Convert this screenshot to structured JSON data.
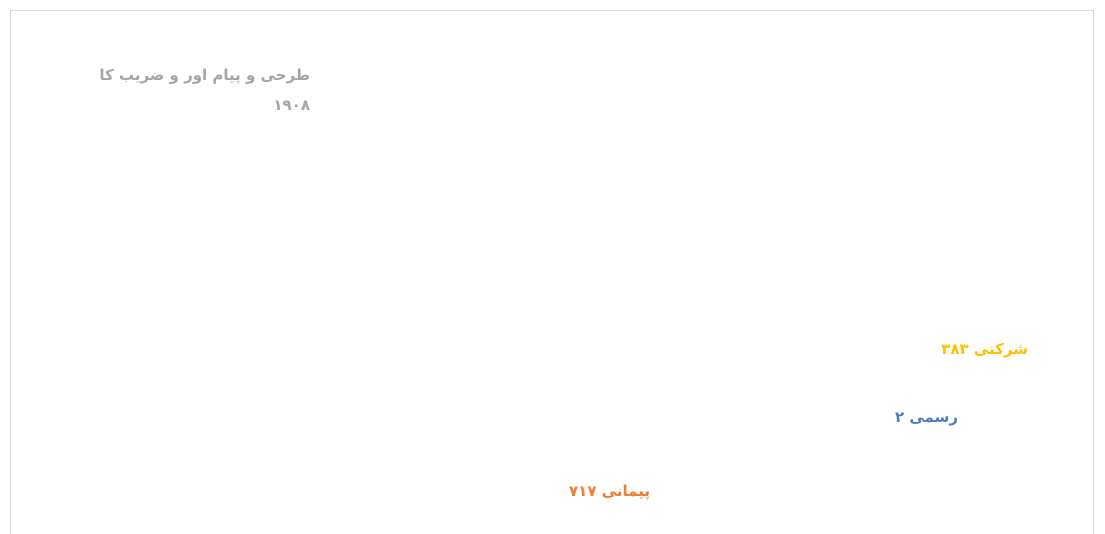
{
  "chart_data": {
    "type": "pie3d",
    "categories": [
      "طرحی و پیام اور و ضریب کا",
      "پیمانی",
      "رسمی",
      "شرکتی"
    ],
    "values": [
      1908,
      717,
      2,
      383
    ],
    "value_labels": [
      "۱۹۰۸",
      "۷۱۷",
      "۲",
      "۳۸۳"
    ],
    "colors": [
      "#a5a5a5",
      "#ed7d31",
      "#264478",
      "#ffc000"
    ]
  }
}
